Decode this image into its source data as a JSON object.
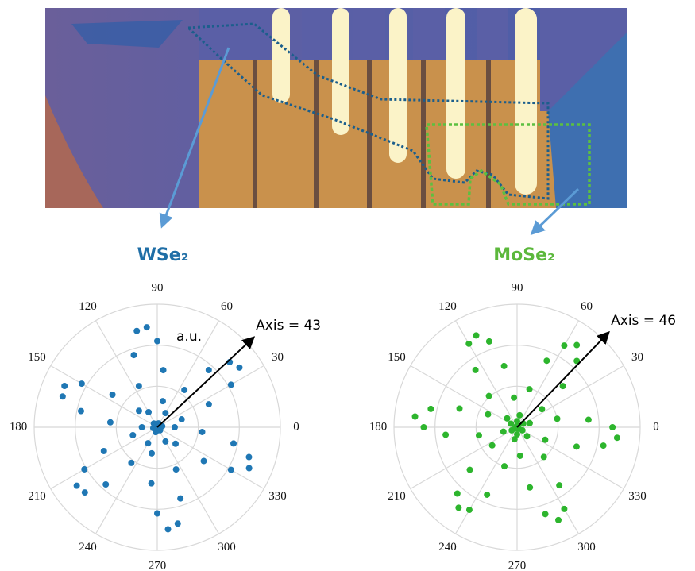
{
  "chart_data": [
    {
      "type": "polar_scatter",
      "title": "WSe₂",
      "color": "#1f77b4",
      "grid": true,
      "unit_label": "a.u.",
      "annotation": "Axis = 43",
      "axis_angle": 43,
      "rlim": [
        0,
        1.2
      ],
      "rticks": [
        0.4,
        0.8,
        1.2
      ],
      "thetaticks": [
        0,
        30,
        60,
        90,
        120,
        150,
        180,
        210,
        240,
        270,
        300,
        330
      ],
      "theta": [
        0,
        6,
        12,
        18,
        24,
        30,
        36,
        42,
        48,
        54,
        60,
        66,
        72,
        78,
        84,
        90,
        96,
        102,
        108,
        114,
        120,
        126,
        132,
        138,
        144,
        150,
        156,
        162,
        168,
        174,
        180,
        186,
        192,
        198,
        204,
        210,
        216,
        222,
        228,
        234,
        240,
        246,
        252,
        258,
        264,
        270,
        276,
        282,
        288,
        294,
        300,
        306,
        312,
        318,
        324,
        330,
        336,
        342,
        348,
        354
      ],
      "r": [
        0.17,
        0.02,
        0.05,
        0.25,
        0.55,
        0.83,
        0.99,
        0.95,
        0.75,
        0.45,
        0.16,
        0.01,
        0.04,
        0.26,
        0.56,
        0.84,
        0.98,
        0.96,
        0.74,
        0.44,
        0.17,
        0.02,
        0.05,
        0.24,
        0.54,
        0.85,
        0.99,
        0.97,
        0.76,
        0.46,
        0.15,
        0.01,
        0.04,
        0.25,
        0.57,
        0.82,
        0.97,
        0.95,
        0.75,
        0.43,
        0.18,
        0.02,
        0.05,
        0.26,
        0.55,
        0.84,
        1.0,
        0.96,
        0.73,
        0.45,
        0.16,
        0.01,
        0.04,
        0.24,
        0.56,
        0.83,
        0.98,
        0.94,
        0.76,
        0.44
      ]
    },
    {
      "type": "polar_scatter",
      "title": "MoSe₂",
      "color": "#2db52d",
      "grid": true,
      "annotation": "Axis = 46",
      "axis_angle": 46,
      "rlim": [
        0,
        1.2
      ],
      "rticks": [
        0.4,
        0.8,
        1.2
      ],
      "thetaticks": [
        0,
        30,
        60,
        90,
        120,
        150,
        180,
        210,
        240,
        270,
        300,
        330
      ],
      "theta": [
        0,
        6,
        12,
        18,
        24,
        30,
        36,
        42,
        48,
        54,
        60,
        66,
        72,
        78,
        84,
        90,
        96,
        102,
        108,
        114,
        120,
        126,
        132,
        138,
        144,
        150,
        156,
        162,
        168,
        174,
        180,
        186,
        192,
        198,
        204,
        210,
        216,
        222,
        228,
        234,
        240,
        246,
        252,
        258,
        264,
        270,
        276,
        282,
        288,
        294,
        300,
        306,
        312,
        318,
        324,
        330,
        336,
        342,
        348,
        354
      ],
      "r": [
        0.93,
        0.7,
        0.4,
        0.13,
        0.01,
        0.07,
        0.3,
        0.6,
        0.87,
        0.99,
        0.92,
        0.71,
        0.39,
        0.12,
        0.02,
        0.06,
        0.29,
        0.61,
        0.88,
        0.98,
        0.94,
        0.69,
        0.41,
        0.13,
        0.01,
        0.07,
        0.31,
        0.59,
        0.86,
        1.0,
        0.91,
        0.7,
        0.38,
        0.14,
        0.02,
        0.06,
        0.3,
        0.62,
        0.87,
        0.97,
        0.93,
        0.72,
        0.4,
        0.12,
        0.01,
        0.07,
        0.28,
        0.6,
        0.89,
        0.99,
        0.92,
        0.7,
        0.39,
        0.13,
        0.02,
        0.06,
        0.3,
        0.61,
        0.86,
        0.98
      ]
    }
  ]
}
